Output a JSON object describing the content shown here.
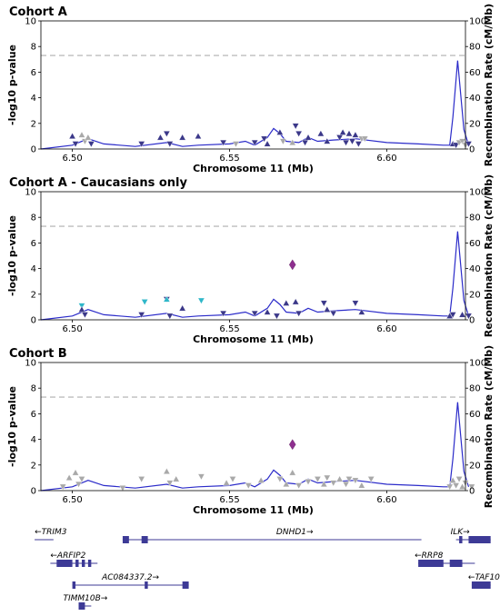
{
  "chart_data": {
    "type": "scatter",
    "x_axis": {
      "label": "Chromosome 11 (Mb)",
      "range": [
        6.49,
        6.625
      ],
      "ticks": [
        "6.50",
        "6.55",
        "6.60"
      ]
    },
    "y_axis_left": {
      "label": "-log10 p-value",
      "range": [
        0,
        10
      ],
      "ticks": [
        "0",
        "2",
        "4",
        "6",
        "8",
        "10"
      ]
    },
    "y_axis_right": {
      "label": "Recombination Rate (cM/Mb)",
      "range": [
        0,
        100
      ],
      "ticks": [
        "0",
        "20",
        "40",
        "60",
        "80",
        "100"
      ]
    },
    "significance_threshold": 7.3,
    "colors": {
      "dark": "#3b3889",
      "gray": "#a9a9a9",
      "cyan": "#2fb7c9",
      "purple": "#8e2f8f",
      "recomb": "#2b2bc9",
      "gene": "#3d3a96",
      "threshold": "#c8c8c8"
    },
    "recombination": [
      [
        6.49,
        0
      ],
      [
        6.5,
        0.3
      ],
      [
        6.505,
        0.8
      ],
      [
        6.51,
        0.4
      ],
      [
        6.52,
        0.2
      ],
      [
        6.53,
        0.5
      ],
      [
        6.535,
        0.2
      ],
      [
        6.54,
        0.3
      ],
      [
        6.55,
        0.4
      ],
      [
        6.555,
        0.6
      ],
      [
        6.558,
        0.3
      ],
      [
        6.562,
        0.9
      ],
      [
        6.564,
        1.6
      ],
      [
        6.566,
        1.2
      ],
      [
        6.568,
        0.6
      ],
      [
        6.572,
        0.5
      ],
      [
        6.575,
        0.9
      ],
      [
        6.578,
        0.6
      ],
      [
        6.583,
        0.7
      ],
      [
        6.59,
        0.8
      ],
      [
        6.6,
        0.5
      ],
      [
        6.61,
        0.4
      ],
      [
        6.618,
        0.3
      ],
      [
        6.62,
        0.3
      ],
      [
        6.621,
        2.5
      ],
      [
        6.6225,
        6.9
      ],
      [
        6.6245,
        1.5
      ],
      [
        6.626,
        0.3
      ]
    ],
    "panels": [
      {
        "title": "Cohort A",
        "points": [
          {
            "x": 6.5,
            "y": 1.0,
            "s": "up",
            "c": "dark"
          },
          {
            "x": 6.501,
            "y": 0.4,
            "s": "down",
            "c": "dark"
          },
          {
            "x": 6.503,
            "y": 1.1,
            "s": "up",
            "c": "gray"
          },
          {
            "x": 6.504,
            "y": 0.6,
            "s": "down",
            "c": "gray"
          },
          {
            "x": 6.505,
            "y": 0.9,
            "s": "up",
            "c": "gray"
          },
          {
            "x": 6.506,
            "y": 0.4,
            "s": "down",
            "c": "dark"
          },
          {
            "x": 6.522,
            "y": 0.4,
            "s": "down",
            "c": "dark"
          },
          {
            "x": 6.528,
            "y": 0.9,
            "s": "up",
            "c": "dark"
          },
          {
            "x": 6.53,
            "y": 1.2,
            "s": "down",
            "c": "dark"
          },
          {
            "x": 6.531,
            "y": 0.4,
            "s": "down",
            "c": "dark"
          },
          {
            "x": 6.535,
            "y": 0.9,
            "s": "up",
            "c": "dark"
          },
          {
            "x": 6.54,
            "y": 1.0,
            "s": "up",
            "c": "dark"
          },
          {
            "x": 6.548,
            "y": 0.5,
            "s": "down",
            "c": "dark"
          },
          {
            "x": 6.552,
            "y": 0.4,
            "s": "down",
            "c": "gray"
          },
          {
            "x": 6.558,
            "y": 0.5,
            "s": "down",
            "c": "dark"
          },
          {
            "x": 6.561,
            "y": 0.8,
            "s": "down",
            "c": "dark"
          },
          {
            "x": 6.562,
            "y": 0.4,
            "s": "up",
            "c": "dark"
          },
          {
            "x": 6.566,
            "y": 1.3,
            "s": "up",
            "c": "dark"
          },
          {
            "x": 6.567,
            "y": 0.6,
            "s": "down",
            "c": "gray"
          },
          {
            "x": 6.57,
            "y": 0.5,
            "s": "up",
            "c": "gray"
          },
          {
            "x": 6.571,
            "y": 1.8,
            "s": "down",
            "c": "dark"
          },
          {
            "x": 6.572,
            "y": 1.2,
            "s": "down",
            "c": "dark"
          },
          {
            "x": 6.574,
            "y": 0.5,
            "s": "down",
            "c": "dark"
          },
          {
            "x": 6.575,
            "y": 0.9,
            "s": "up",
            "c": "dark"
          },
          {
            "x": 6.579,
            "y": 1.2,
            "s": "up",
            "c": "dark"
          },
          {
            "x": 6.581,
            "y": 0.6,
            "s": "up",
            "c": "dark"
          },
          {
            "x": 6.585,
            "y": 0.9,
            "s": "down",
            "c": "dark"
          },
          {
            "x": 6.586,
            "y": 1.3,
            "s": "up",
            "c": "dark"
          },
          {
            "x": 6.587,
            "y": 0.5,
            "s": "down",
            "c": "dark"
          },
          {
            "x": 6.588,
            "y": 1.2,
            "s": "up",
            "c": "dark"
          },
          {
            "x": 6.589,
            "y": 0.6,
            "s": "down",
            "c": "dark"
          },
          {
            "x": 6.59,
            "y": 1.1,
            "s": "up",
            "c": "dark"
          },
          {
            "x": 6.591,
            "y": 0.4,
            "s": "down",
            "c": "dark"
          },
          {
            "x": 6.592,
            "y": 0.8,
            "s": "down",
            "c": "gray"
          },
          {
            "x": 6.593,
            "y": 0.8,
            "s": "down",
            "c": "gray"
          },
          {
            "x": 6.621,
            "y": 0.4,
            "s": "up",
            "c": "dark"
          },
          {
            "x": 6.622,
            "y": 0.3,
            "s": "down",
            "c": "dark"
          },
          {
            "x": 6.623,
            "y": 0.5,
            "s": "down",
            "c": "gray"
          },
          {
            "x": 6.624,
            "y": 0.6,
            "s": "down",
            "c": "gray"
          },
          {
            "x": 6.625,
            "y": 0.3,
            "s": "down",
            "c": "gray"
          },
          {
            "x": 6.626,
            "y": 0.4,
            "s": "down",
            "c": "dark"
          }
        ]
      },
      {
        "title": "Cohort A - Caucasians only",
        "points": [
          {
            "x": 6.503,
            "y": 1.1,
            "s": "down",
            "c": "cyan"
          },
          {
            "x": 6.503,
            "y": 0.8,
            "s": "up",
            "c": "dark"
          },
          {
            "x": 6.504,
            "y": 0.4,
            "s": "down",
            "c": "dark"
          },
          {
            "x": 6.522,
            "y": 0.4,
            "s": "down",
            "c": "dark"
          },
          {
            "x": 6.523,
            "y": 1.4,
            "s": "down",
            "c": "cyan"
          },
          {
            "x": 6.53,
            "y": 1.6,
            "s": "down",
            "c": "dark"
          },
          {
            "x": 6.53,
            "y": 1.6,
            "s": "up",
            "c": "cyan"
          },
          {
            "x": 6.531,
            "y": 0.3,
            "s": "down",
            "c": "dark"
          },
          {
            "x": 6.535,
            "y": 0.9,
            "s": "up",
            "c": "dark"
          },
          {
            "x": 6.541,
            "y": 1.5,
            "s": "down",
            "c": "cyan"
          },
          {
            "x": 6.548,
            "y": 0.5,
            "s": "down",
            "c": "dark"
          },
          {
            "x": 6.558,
            "y": 0.5,
            "s": "down",
            "c": "dark"
          },
          {
            "x": 6.562,
            "y": 0.6,
            "s": "up",
            "c": "dark"
          },
          {
            "x": 6.565,
            "y": 0.3,
            "s": "down",
            "c": "dark"
          },
          {
            "x": 6.568,
            "y": 1.3,
            "s": "up",
            "c": "dark"
          },
          {
            "x": 6.57,
            "y": 4.3,
            "s": "diamond",
            "c": "purple"
          },
          {
            "x": 6.571,
            "y": 1.4,
            "s": "up",
            "c": "dark"
          },
          {
            "x": 6.572,
            "y": 0.5,
            "s": "down",
            "c": "dark"
          },
          {
            "x": 6.58,
            "y": 1.3,
            "s": "down",
            "c": "dark"
          },
          {
            "x": 6.581,
            "y": 0.8,
            "s": "up",
            "c": "dark"
          },
          {
            "x": 6.583,
            "y": 0.5,
            "s": "down",
            "c": "dark"
          },
          {
            "x": 6.59,
            "y": 1.3,
            "s": "down",
            "c": "dark"
          },
          {
            "x": 6.592,
            "y": 0.6,
            "s": "up",
            "c": "dark"
          },
          {
            "x": 6.62,
            "y": 0.3,
            "s": "up",
            "c": "dark"
          },
          {
            "x": 6.621,
            "y": 0.4,
            "s": "down",
            "c": "dark"
          },
          {
            "x": 6.624,
            "y": 0.4,
            "s": "up",
            "c": "dark"
          },
          {
            "x": 6.626,
            "y": 0.3,
            "s": "down",
            "c": "dark"
          }
        ]
      },
      {
        "title": "Cohort B",
        "points": [
          {
            "x": 6.497,
            "y": 0.3,
            "s": "down",
            "c": "gray"
          },
          {
            "x": 6.499,
            "y": 1.0,
            "s": "up",
            "c": "gray"
          },
          {
            "x": 6.501,
            "y": 1.4,
            "s": "up",
            "c": "gray"
          },
          {
            "x": 6.502,
            "y": 0.5,
            "s": "down",
            "c": "gray"
          },
          {
            "x": 6.503,
            "y": 0.9,
            "s": "down",
            "c": "gray"
          },
          {
            "x": 6.516,
            "y": 0.2,
            "s": "down",
            "c": "gray"
          },
          {
            "x": 6.522,
            "y": 0.9,
            "s": "down",
            "c": "gray"
          },
          {
            "x": 6.53,
            "y": 1.5,
            "s": "up",
            "c": "gray"
          },
          {
            "x": 6.531,
            "y": 0.6,
            "s": "down",
            "c": "gray"
          },
          {
            "x": 6.533,
            "y": 0.9,
            "s": "up",
            "c": "gray"
          },
          {
            "x": 6.541,
            "y": 1.1,
            "s": "down",
            "c": "gray"
          },
          {
            "x": 6.549,
            "y": 0.6,
            "s": "up",
            "c": "gray"
          },
          {
            "x": 6.551,
            "y": 0.9,
            "s": "down",
            "c": "gray"
          },
          {
            "x": 6.556,
            "y": 0.4,
            "s": "down",
            "c": "gray"
          },
          {
            "x": 6.56,
            "y": 0.8,
            "s": "up",
            "c": "gray"
          },
          {
            "x": 6.566,
            "y": 0.9,
            "s": "down",
            "c": "gray"
          },
          {
            "x": 6.568,
            "y": 0.5,
            "s": "up",
            "c": "gray"
          },
          {
            "x": 6.57,
            "y": 1.4,
            "s": "up",
            "c": "gray"
          },
          {
            "x": 6.57,
            "y": 3.6,
            "s": "diamond",
            "c": "purple"
          },
          {
            "x": 6.572,
            "y": 0.4,
            "s": "down",
            "c": "gray"
          },
          {
            "x": 6.575,
            "y": 0.7,
            "s": "down",
            "c": "gray"
          },
          {
            "x": 6.578,
            "y": 0.9,
            "s": "down",
            "c": "gray"
          },
          {
            "x": 6.58,
            "y": 0.5,
            "s": "up",
            "c": "gray"
          },
          {
            "x": 6.581,
            "y": 1.0,
            "s": "down",
            "c": "gray"
          },
          {
            "x": 6.583,
            "y": 0.6,
            "s": "down",
            "c": "gray"
          },
          {
            "x": 6.585,
            "y": 0.9,
            "s": "up",
            "c": "gray"
          },
          {
            "x": 6.587,
            "y": 0.5,
            "s": "down",
            "c": "gray"
          },
          {
            "x": 6.588,
            "y": 0.9,
            "s": "down",
            "c": "gray"
          },
          {
            "x": 6.59,
            "y": 0.8,
            "s": "down",
            "c": "gray"
          },
          {
            "x": 6.592,
            "y": 0.4,
            "s": "up",
            "c": "gray"
          },
          {
            "x": 6.595,
            "y": 0.9,
            "s": "down",
            "c": "gray"
          },
          {
            "x": 6.62,
            "y": 0.3,
            "s": "down",
            "c": "gray"
          },
          {
            "x": 6.621,
            "y": 0.8,
            "s": "up",
            "c": "gray"
          },
          {
            "x": 6.622,
            "y": 0.4,
            "s": "down",
            "c": "gray"
          },
          {
            "x": 6.623,
            "y": 0.9,
            "s": "down",
            "c": "gray"
          },
          {
            "x": 6.624,
            "y": 0.3,
            "s": "up",
            "c": "gray"
          },
          {
            "x": 6.625,
            "y": 0.6,
            "s": "down",
            "c": "gray"
          },
          {
            "x": 6.627,
            "y": 0.3,
            "s": "down",
            "c": "gray"
          }
        ]
      }
    ],
    "genes": [
      {
        "name": "TRIM3",
        "label": "←TRIM3",
        "start": 6.488,
        "end": 6.494,
        "row": 0,
        "exons": []
      },
      {
        "name": "DNHD1",
        "label": "DNHD1→",
        "start": 6.516,
        "end": 6.611,
        "row": 0,
        "exons": [
          [
            6.516,
            6.518
          ],
          [
            6.522,
            6.524
          ]
        ]
      },
      {
        "name": "ILK",
        "label": "ILK→",
        "start": 6.622,
        "end": 6.633,
        "row": 0,
        "exons": [
          [
            6.623,
            6.624
          ],
          [
            6.626,
            6.633
          ]
        ]
      },
      {
        "name": "ARFIP2",
        "label": "←ARFIP2",
        "start": 6.493,
        "end": 6.508,
        "row": 1,
        "exons": [
          [
            6.495,
            6.5
          ],
          [
            6.501,
            6.502
          ],
          [
            6.503,
            6.504
          ],
          [
            6.505,
            6.506
          ]
        ]
      },
      {
        "name": "RRP8",
        "label": "←RRP8",
        "start": 6.61,
        "end": 6.628,
        "row": 1,
        "exons": [
          [
            6.61,
            6.618
          ],
          [
            6.62,
            6.624
          ]
        ]
      },
      {
        "name": "AC084337.2",
        "label": "AC084337.2→",
        "start": 6.5,
        "end": 6.537,
        "row": 2,
        "exons": [
          [
            6.5,
            6.501
          ],
          [
            6.523,
            6.524
          ],
          [
            6.535,
            6.537
          ]
        ]
      },
      {
        "name": "TAF10",
        "label": "←TAF10",
        "start": 6.627,
        "end": 6.633,
        "row": 2,
        "exons": [
          [
            6.627,
            6.633
          ]
        ]
      },
      {
        "name": "TIMM10B",
        "label": "TIMM10B→",
        "start": 6.502,
        "end": 6.506,
        "row": 3,
        "exons": [
          [
            6.502,
            6.504
          ]
        ]
      }
    ]
  }
}
